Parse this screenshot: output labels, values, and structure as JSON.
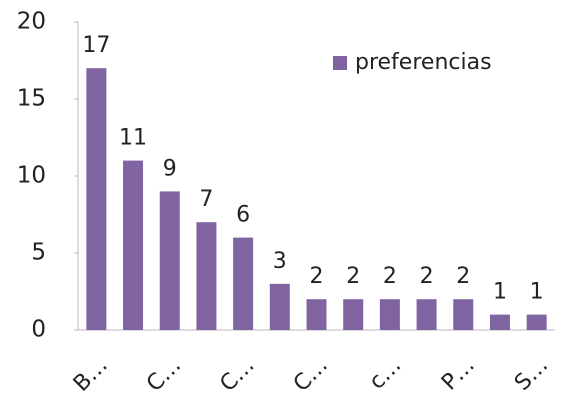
{
  "chart_data": {
    "type": "bar",
    "categories": [
      "B…",
      null,
      "C…",
      null,
      "C…",
      null,
      "C…",
      null,
      "c…",
      null,
      "P…",
      null,
      "S…"
    ],
    "series": [
      {
        "name": "preferencias",
        "color": "#8064a2",
        "values": [
          17,
          11,
          9,
          7,
          6,
          3,
          2,
          2,
          2,
          2,
          2,
          1,
          1
        ]
      }
    ],
    "ylim": [
      0,
      20
    ],
    "yticks": [
      0,
      5,
      10,
      15,
      20
    ],
    "grid": false,
    "legend": "top-right"
  }
}
